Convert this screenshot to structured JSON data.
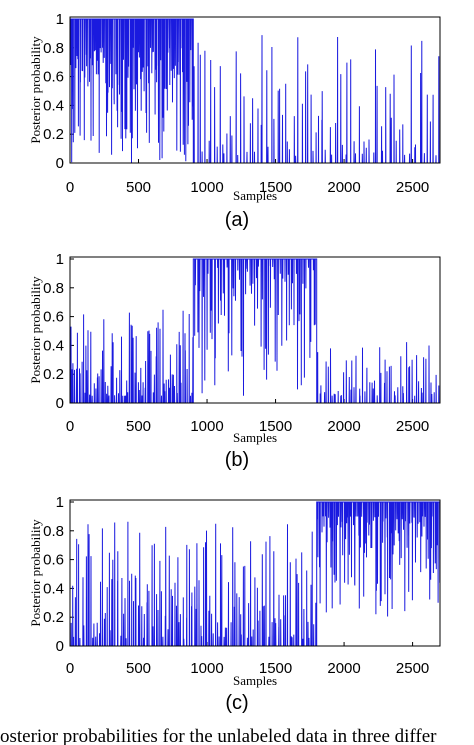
{
  "caption": "osterior probabilities for the unlabeled data in three differ",
  "chart_data": [
    {
      "type": "line",
      "panel_label": "(a)",
      "xlabel": "Samples",
      "ylabel": "Posterior probability",
      "xlim": [
        0,
        2700
      ],
      "ylim": [
        0,
        1
      ],
      "xticks": [
        "0",
        "500",
        "1000",
        "1500",
        "2000",
        "2500"
      ],
      "yticks": [
        "0",
        "0.2",
        "0.4",
        "0.6",
        "0.8",
        "1"
      ],
      "color": "#1a1adf",
      "segments": [
        {
          "x_start": 0,
          "x_end": 900,
          "baseline": 1,
          "dip_count": 120,
          "dip_depth": [
            0.2,
            1
          ]
        },
        {
          "x_start": 900,
          "x_end": 2700,
          "baseline": 0,
          "spike_count": 90,
          "spike_height": [
            0.05,
            0.9
          ]
        }
      ]
    },
    {
      "type": "line",
      "panel_label": "(b)",
      "xlabel": "Samples",
      "ylabel": "Posterior probability",
      "xlim": [
        0,
        2700
      ],
      "ylim": [
        0,
        1
      ],
      "xticks": [
        "0",
        "500",
        "1000",
        "1500",
        "2000",
        "2500"
      ],
      "yticks": [
        "0",
        "0.2",
        "0.4",
        "0.6",
        "0.8",
        "1"
      ],
      "color": "#1a1adf",
      "segments": [
        {
          "x_start": 0,
          "x_end": 900,
          "baseline": 0,
          "spike_count": 90,
          "spike_height": [
            0.05,
            0.65
          ]
        },
        {
          "x_start": 900,
          "x_end": 1800,
          "baseline": 1,
          "dip_count": 80,
          "dip_depth": [
            0.05,
            1
          ]
        },
        {
          "x_start": 1800,
          "x_end": 2700,
          "baseline": 0,
          "spike_count": 60,
          "spike_height": [
            0.05,
            0.45
          ]
        }
      ]
    },
    {
      "type": "line",
      "panel_label": "(c)",
      "xlabel": "Samples",
      "ylabel": "Posterior probability",
      "xlim": [
        0,
        2700
      ],
      "ylim": [
        0,
        1
      ],
      "xticks": [
        "0",
        "500",
        "1000",
        "1500",
        "2000",
        "2500"
      ],
      "yticks": [
        "0",
        "0.2",
        "0.4",
        "0.6",
        "0.8",
        "1"
      ],
      "color": "#1a1adf",
      "segments": [
        {
          "x_start": 0,
          "x_end": 1800,
          "baseline": 0,
          "spike_count": 150,
          "spike_height": [
            0.05,
            0.9
          ]
        },
        {
          "x_start": 1800,
          "x_end": 2700,
          "baseline": 1,
          "dip_count": 110,
          "dip_depth": [
            0.1,
            0.8
          ]
        }
      ]
    }
  ]
}
